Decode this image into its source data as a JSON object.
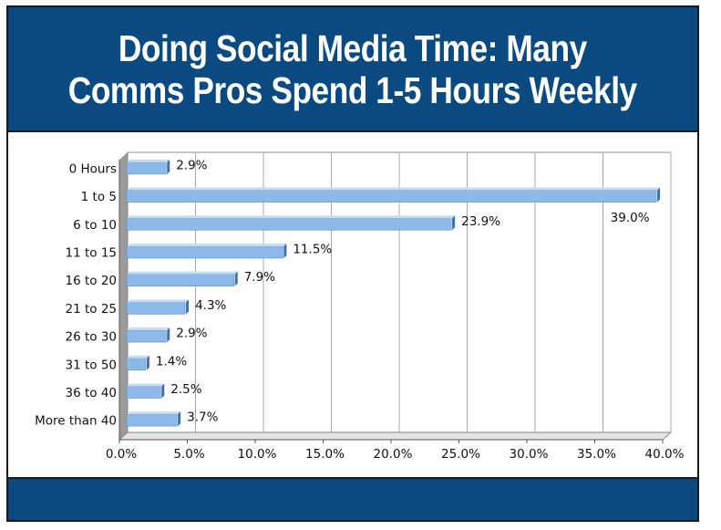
{
  "header": {
    "title_line1": "Doing Social Media Time: Many",
    "title_line2": "Comms Pros Spend 1-5 Hours Weekly"
  },
  "colors": {
    "banner": "#0a4a80",
    "bar_fill": "#8db9e8",
    "bar_top": "#c4dcf4",
    "bar_side": "#3e6fa6",
    "wall": "#9a9a9a",
    "grid": "#a8a8a8"
  },
  "chart_data": {
    "type": "bar",
    "orientation": "horizontal",
    "style": "3d",
    "categories": [
      "0 Hours",
      "1 to 5",
      "6 to 10",
      "11 to 15",
      "16 to 20",
      "21 to 25",
      "26 to 30",
      "31 to 50",
      "36 to 40",
      "More than 40"
    ],
    "values": [
      2.9,
      39.0,
      23.9,
      11.5,
      7.9,
      4.3,
      2.9,
      1.4,
      2.5,
      3.7
    ],
    "data_labels": [
      "2.9%",
      "39.0%",
      "23.9%",
      "11.5%",
      "7.9%",
      "4.3%",
      "2.9%",
      "1.4%",
      "2.5%",
      "3.7%"
    ],
    "xlim": [
      0,
      40
    ],
    "xticks": [
      "0.0%",
      "5.0%",
      "10.0%",
      "15.0%",
      "20.0%",
      "25.0%",
      "30.0%",
      "35.0%",
      "40.0%"
    ],
    "grid": true,
    "legend": false
  }
}
